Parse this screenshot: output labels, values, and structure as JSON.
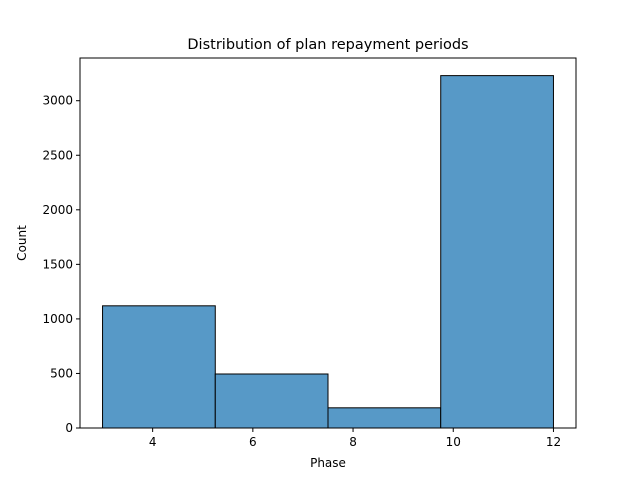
{
  "chart_data": {
    "type": "bar",
    "subtype": "histogram",
    "title": "Distribution of plan repayment periods",
    "xlabel": "Phase",
    "ylabel": "Count",
    "bins": [
      {
        "start": 3.0,
        "end": 5.25,
        "count": 1120
      },
      {
        "start": 5.25,
        "end": 7.5,
        "count": 495
      },
      {
        "start": 7.5,
        "end": 9.75,
        "count": 185
      },
      {
        "start": 9.75,
        "end": 12.0,
        "count": 3230
      }
    ],
    "xlim": [
      2.55,
      12.45
    ],
    "ylim": [
      0,
      3391.5
    ],
    "xticks": [
      4,
      6,
      8,
      10,
      12
    ],
    "yticks": [
      0,
      500,
      1000,
      1500,
      2000,
      2500,
      3000
    ],
    "bar_color": "#5799c7",
    "edge_color": "#000000",
    "grid": false,
    "legend": "none"
  }
}
